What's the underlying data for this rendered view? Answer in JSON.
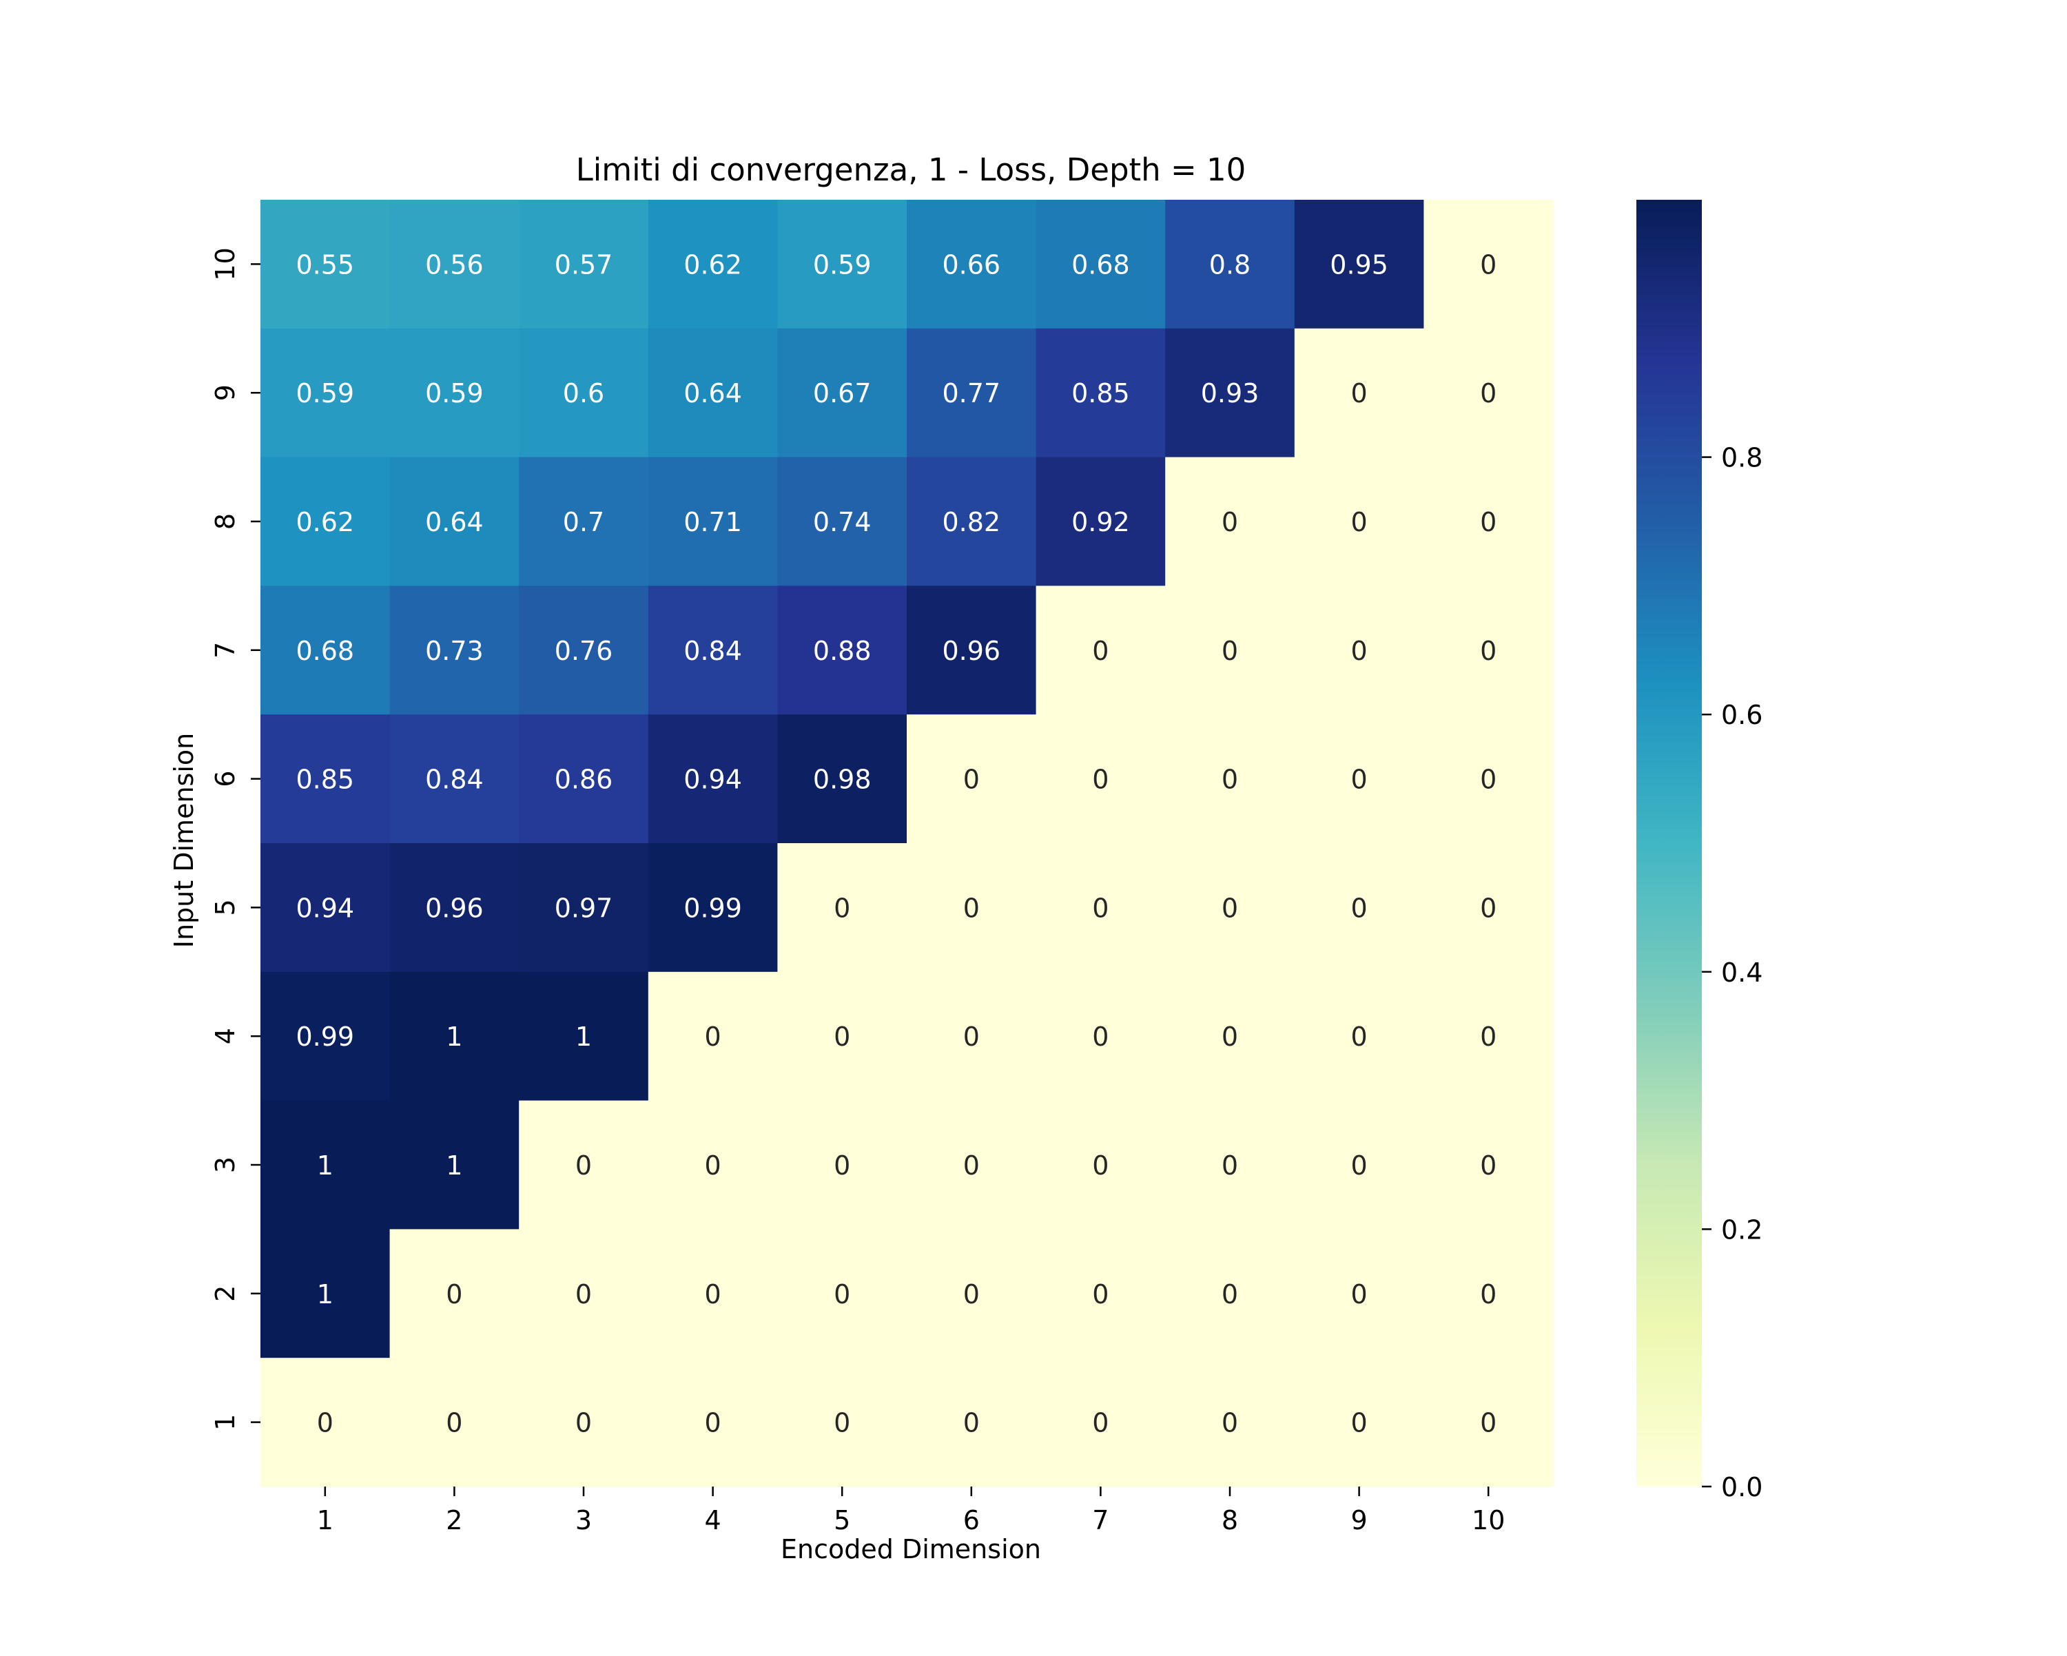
{
  "chart_data": {
    "type": "heatmap",
    "title": "Limiti di convergenza, 1 - Loss, Depth = 10",
    "xlabel": "Encoded Dimension",
    "ylabel": "Input Dimension",
    "x_categories": [
      "1",
      "2",
      "3",
      "4",
      "5",
      "6",
      "7",
      "8",
      "9",
      "10"
    ],
    "y_categories": [
      "10",
      "9",
      "8",
      "7",
      "6",
      "5",
      "4",
      "3",
      "2",
      "1"
    ],
    "values": [
      [
        0.55,
        0.56,
        0.57,
        0.62,
        0.59,
        0.66,
        0.68,
        0.8,
        0.95,
        0
      ],
      [
        0.59,
        0.59,
        0.6,
        0.64,
        0.67,
        0.77,
        0.85,
        0.93,
        0,
        0
      ],
      [
        0.62,
        0.64,
        0.7,
        0.71,
        0.74,
        0.82,
        0.92,
        0,
        0,
        0
      ],
      [
        0.68,
        0.73,
        0.76,
        0.84,
        0.88,
        0.96,
        0,
        0,
        0,
        0
      ],
      [
        0.85,
        0.84,
        0.86,
        0.94,
        0.98,
        0,
        0,
        0,
        0,
        0
      ],
      [
        0.94,
        0.96,
        0.97,
        0.99,
        0,
        0,
        0,
        0,
        0,
        0
      ],
      [
        0.99,
        1,
        1,
        0,
        0,
        0,
        0,
        0,
        0,
        0
      ],
      [
        1,
        1,
        0,
        0,
        0,
        0,
        0,
        0,
        0,
        0
      ],
      [
        1,
        0,
        0,
        0,
        0,
        0,
        0,
        0,
        0,
        0
      ],
      [
        0,
        0,
        0,
        0,
        0,
        0,
        0,
        0,
        0,
        0
      ]
    ],
    "colormap": "YlGnBu",
    "colorbar": {
      "vmin": 0,
      "vmax": 1,
      "ticks": [
        "0.0",
        "0.2",
        "0.4",
        "0.6",
        "0.8"
      ],
      "tick_values": [
        0,
        0.2,
        0.4,
        0.6,
        0.8
      ]
    },
    "colors": {
      "text_dark": "#262626",
      "text_light": "#ffffff",
      "ylgnbu_stops": [
        "#ffffd9",
        "#edf8b1",
        "#c7e9b4",
        "#7fcdbb",
        "#41b6c4",
        "#1d91c0",
        "#225ea8",
        "#253494",
        "#081d58"
      ]
    }
  }
}
